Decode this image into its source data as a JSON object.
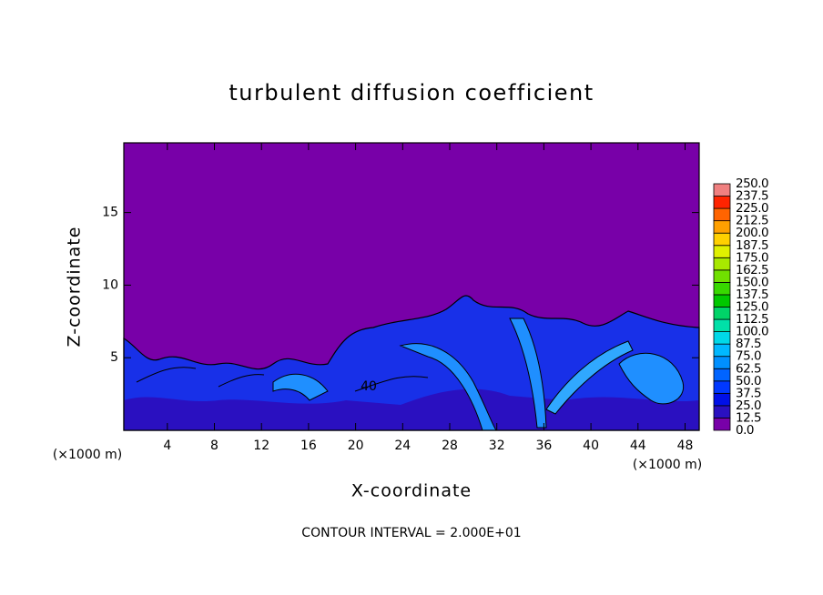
{
  "chart_data": {
    "type": "contour",
    "title": "turbulent diffusion coefficient",
    "xlabel": "X-coordinate",
    "ylabel": "Z-coordinate",
    "x_unit_left": "(×1000 m)",
    "x_unit_right": "(×1000 m)",
    "footnote": "CONTOUR INTERVAL = 2.000E+01",
    "annotations": [
      "40"
    ],
    "xlim": [
      0.3,
      49.2
    ],
    "ylim": [
      0,
      19.8
    ],
    "xticks": [
      4,
      8,
      12,
      16,
      20,
      24,
      28,
      32,
      36,
      40,
      44,
      48
    ],
    "yticks": [
      5,
      10,
      15
    ],
    "colorbar": {
      "ticks": [
        {
          "value": 0,
          "label": "0.0"
        },
        {
          "value": 12.5,
          "label": "12.5"
        },
        {
          "value": 25,
          "label": "25.0"
        },
        {
          "value": 37.5,
          "label": "37.5"
        },
        {
          "value": 50,
          "label": "50.0"
        },
        {
          "value": 62.5,
          "label": "62.5"
        },
        {
          "value": 75,
          "label": "75.0"
        },
        {
          "value": 87.5,
          "label": "87.5"
        },
        {
          "value": 100,
          "label": "100.0"
        },
        {
          "value": 112.5,
          "label": "112.5"
        },
        {
          "value": 125,
          "label": "125.0"
        },
        {
          "value": 137.5,
          "label": "137.5"
        },
        {
          "value": 150,
          "label": "150.0"
        },
        {
          "value": 162.5,
          "label": "162.5"
        },
        {
          "value": 175,
          "label": "175.0"
        },
        {
          "value": 187.5,
          "label": "187.5"
        },
        {
          "value": 200,
          "label": "200.0"
        },
        {
          "value": 212.5,
          "label": "212.5"
        },
        {
          "value": 225,
          "label": "225.0"
        },
        {
          "value": 237.5,
          "label": "237.5"
        },
        {
          "value": 250,
          "label": "250.0"
        }
      ],
      "colors": [
        "#7800a8",
        "#2a10c0",
        "#0010e8",
        "#0038ff",
        "#0064ff",
        "#0090ff",
        "#00b8ff",
        "#00d8e8",
        "#00e0a8",
        "#00d468",
        "#00c800",
        "#38d800",
        "#70e000",
        "#a8e800",
        "#e0f000",
        "#ffd000",
        "#ffa000",
        "#ff6400",
        "#ff2400",
        "#f08080"
      ]
    }
  }
}
